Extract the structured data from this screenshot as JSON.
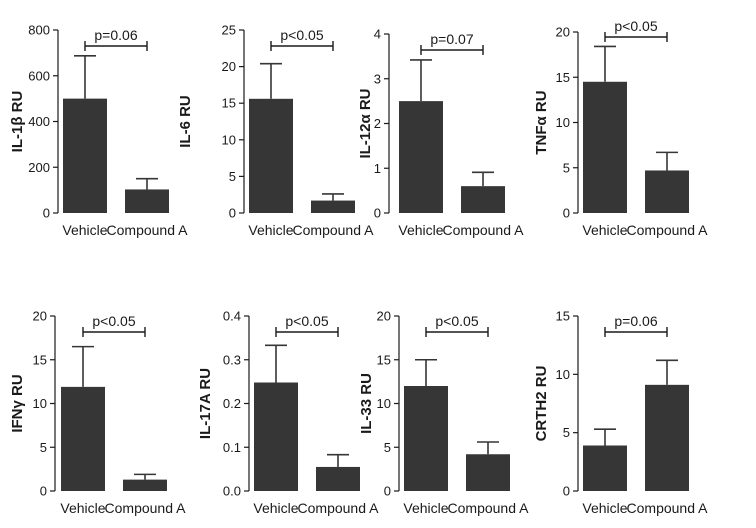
{
  "colors": {
    "bar": "#363636",
    "axis": "#1a1a1a",
    "background": "#ffffff"
  },
  "chart_data": [
    {
      "type": "bar",
      "ylabel": "IL-1β RU",
      "categories": [
        "Vehicle",
        "Compound A"
      ],
      "values": [
        500,
        103
      ],
      "errors": [
        187,
        47
      ],
      "ylim": [
        0,
        800
      ],
      "yticks": [
        0,
        200,
        400,
        600,
        800
      ],
      "yticklabels": [
        "0",
        "200",
        "400",
        "600",
        "800"
      ],
      "significance": "p=0.06",
      "grid": false
    },
    {
      "type": "bar",
      "ylabel": "IL-6 RU",
      "categories": [
        "Vehicle",
        "Compound A"
      ],
      "values": [
        15.6,
        1.7
      ],
      "errors": [
        4.8,
        0.9
      ],
      "ylim": [
        0,
        25
      ],
      "yticks": [
        0,
        5,
        10,
        15,
        20,
        25
      ],
      "yticklabels": [
        "0",
        "5",
        "10",
        "15",
        "20",
        "25"
      ],
      "significance": "p<0.05",
      "grid": false
    },
    {
      "type": "bar",
      "ylabel": "IL-12α RU",
      "categories": [
        "Vehicle",
        "Compound A"
      ],
      "values": [
        2.5,
        0.6
      ],
      "errors": [
        0.92,
        0.31
      ],
      "ylim": [
        0,
        4
      ],
      "yticks": [
        0,
        1,
        2,
        3,
        4
      ],
      "yticklabels": [
        "0",
        "1",
        "2",
        "3",
        "4"
      ],
      "significance": "p=0.07",
      "grid": false
    },
    {
      "type": "bar",
      "ylabel": "TNFα RU",
      "categories": [
        "Vehicle",
        "Compound A"
      ],
      "values": [
        14.5,
        4.7
      ],
      "errors": [
        3.9,
        2.0
      ],
      "ylim": [
        0,
        20
      ],
      "yticks": [
        0,
        5,
        10,
        15,
        20
      ],
      "yticklabels": [
        "0",
        "5",
        "10",
        "15",
        "20"
      ],
      "significance": "p<0.05",
      "grid": false
    },
    {
      "type": "bar",
      "ylabel": "IFNγ RU",
      "categories": [
        "Vehicle",
        "Compound A"
      ],
      "values": [
        11.9,
        1.3
      ],
      "errors": [
        4.6,
        0.6
      ],
      "ylim": [
        0,
        20
      ],
      "yticks": [
        0,
        5,
        10,
        15,
        20
      ],
      "yticklabels": [
        "0",
        "5",
        "10",
        "15",
        "20"
      ],
      "significance": "p<0.05",
      "grid": false
    },
    {
      "type": "bar",
      "ylabel": "IL-17A RU",
      "categories": [
        "Vehicle",
        "Compound A"
      ],
      "values": [
        0.248,
        0.055
      ],
      "errors": [
        0.085,
        0.028
      ],
      "ylim": [
        0,
        0.4
      ],
      "yticks": [
        0,
        0.1,
        0.2,
        0.3,
        0.4
      ],
      "yticklabels": [
        "0.0",
        "0.1",
        "0.2",
        "0.3",
        "0.4"
      ],
      "significance": "p<0.05",
      "grid": false
    },
    {
      "type": "bar",
      "ylabel": "IL-33 RU",
      "categories": [
        "Vehicle",
        "Compound A"
      ],
      "values": [
        12.0,
        4.2
      ],
      "errors": [
        3.0,
        1.4
      ],
      "ylim": [
        0,
        20
      ],
      "yticks": [
        0,
        5,
        10,
        15,
        20
      ],
      "yticklabels": [
        "0",
        "5",
        "10",
        "15",
        "20"
      ],
      "significance": "p<0.05",
      "grid": false
    },
    {
      "type": "bar",
      "ylabel": "CRTH2 RU",
      "categories": [
        "Vehicle",
        "Compound A"
      ],
      "values": [
        3.9,
        9.1
      ],
      "errors": [
        1.4,
        2.1
      ],
      "ylim": [
        0,
        15
      ],
      "yticks": [
        0,
        5,
        10,
        15
      ],
      "yticklabels": [
        "0",
        "5",
        "10",
        "15"
      ],
      "significance": "p=0.06",
      "grid": false
    }
  ]
}
